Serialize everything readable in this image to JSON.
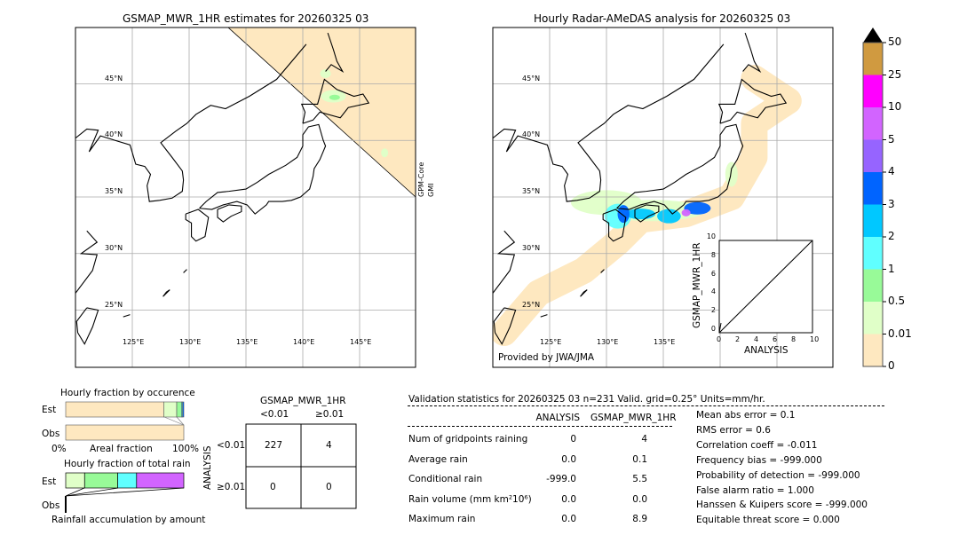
{
  "left_map": {
    "title": "GSMAP_MWR_1HR estimates for 20260325 03",
    "side_label_1": "GPM-Core",
    "side_label_2": "GMI"
  },
  "right_map": {
    "title": "Hourly Radar-AMeDAS analysis for 20260325 03",
    "credit": "Provided by JWA/JMA"
  },
  "lat_labels": [
    "45°N",
    "40°N",
    "35°N",
    "30°N",
    "25°N"
  ],
  "lon_labels": [
    "125°E",
    "130°E",
    "135°E",
    "140°E",
    "145°E"
  ],
  "colorbar": {
    "ticks": [
      "0",
      "0.01",
      "0.5",
      "1",
      "2",
      "3",
      "4",
      "5",
      "10",
      "25",
      "50"
    ],
    "colors": [
      "#fee8c0",
      "#e0ffc8",
      "#98fa98",
      "#60ffff",
      "#00c8ff",
      "#0064ff",
      "#9664ff",
      "#d264ff",
      "#ff00ff",
      "#d09a40"
    ],
    "extend": "max"
  },
  "inset_scatter": {
    "xlabel": "ANALYSIS",
    "ylabel": "GSMAP_MWR_1HR",
    "ticks": [
      "0",
      "2",
      "4",
      "6",
      "8",
      "10"
    ],
    "xlim": [
      0,
      10
    ],
    "ylim": [
      0,
      10
    ]
  },
  "occurrence": {
    "title": "Hourly fraction by occurence",
    "est": "Est",
    "obs": "Obs",
    "x0": "0%",
    "xlabel": "Areal fraction",
    "x1": "100%",
    "est_fractions": [
      0.83,
      0.11,
      0.04,
      0.01,
      0.01
    ],
    "obs_fractions": [
      1.0
    ]
  },
  "total_rain": {
    "title": "Hourly fraction of total rain",
    "est": "Est",
    "obs": "Obs",
    "xlabel": "Rainfall accumulation by amount",
    "est_fractions": [
      0.16,
      0.28,
      0.16,
      0.4
    ],
    "est_colors": [
      "#e0ffc8",
      "#98fa98",
      "#60ffff",
      "#d264ff"
    ]
  },
  "contingency": {
    "col_title": "GSMAP_MWR_1HR",
    "cols": [
      "<0.01",
      "≥0.01"
    ],
    "row_title": "ANALYSIS",
    "rows": [
      "<0.01",
      "≥0.01"
    ],
    "cells": [
      [
        "227",
        "4"
      ],
      [
        "0",
        "0"
      ]
    ]
  },
  "stats": {
    "header": "Validation statistics for 20260325 03  n=231 Valid. grid=0.25° Units=mm/hr.",
    "col1": "ANALYSIS",
    "col2": "GSMAP_MWR_1HR",
    "rows": [
      {
        "label": "Num of gridpoints raining",
        "a": "0",
        "b": "4"
      },
      {
        "label": "Average rain",
        "a": "0.0",
        "b": "0.1"
      },
      {
        "label": "Conditional rain",
        "a": "-999.0",
        "b": "5.5"
      },
      {
        "label": "Rain volume (mm km²10⁶)",
        "a": "0.0",
        "b": "0.0"
      },
      {
        "label": "Maximum rain",
        "a": "0.0",
        "b": "8.9"
      }
    ],
    "scores": [
      "Mean abs error =    0.1",
      "RMS error =    0.6",
      "Correlation coeff = -0.011",
      "Frequency bias = -999.000",
      "Probability of detection = -999.000",
      "False alarm ratio =  1.000",
      "Hanssen & Kuipers score = -999.000",
      "Equitable threat score =  0.000"
    ]
  },
  "chart_data": {
    "type": "map",
    "maps": [
      "GSMAP_MWR_1HR estimates for 20260325 03",
      "Hourly Radar-AMeDAS analysis for 20260325 03"
    ],
    "lon_range": [
      120,
      150
    ],
    "lat_range": [
      20,
      50
    ]
  }
}
